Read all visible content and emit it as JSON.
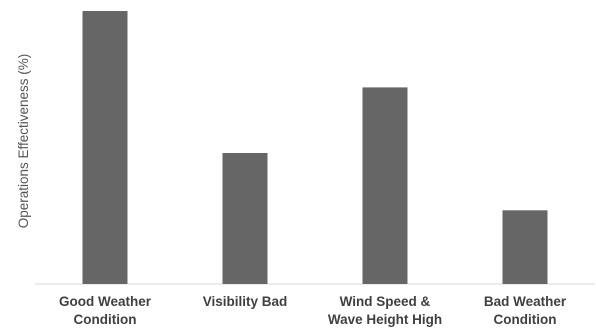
{
  "chart_data": {
    "type": "bar",
    "categories": [
      [
        "Good Weather",
        "Condition"
      ],
      [
        "Visibility Bad"
      ],
      [
        "Wind Speed &",
        "Wave Height High"
      ],
      [
        "Bad Weather",
        "Condition"
      ]
    ],
    "values": [
      100,
      48,
      72,
      27
    ],
    "xlabel": "",
    "ylabel": "Operations Effectiveness (%)",
    "ylim": [
      0,
      100
    ],
    "grid": false,
    "legend": "none",
    "bar_color": "#666666",
    "axis_color": "#d9d9d9"
  }
}
